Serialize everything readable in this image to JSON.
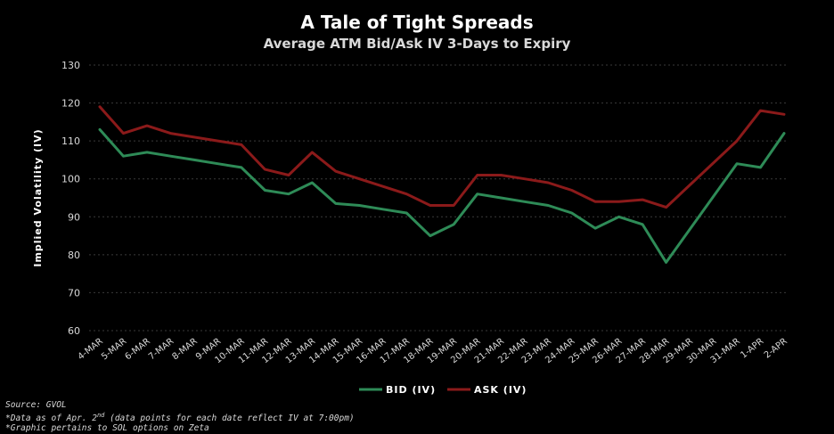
{
  "chart_data": {
    "type": "line",
    "title": "A Tale of Tight Spreads",
    "subtitle": "Average ATM Bid/Ask IV 3-Days to Expiry",
    "ylabel": "Implied Volatility (IV)",
    "xlabel": "",
    "ylim": [
      60,
      130
    ],
    "yticks": [
      60,
      70,
      80,
      90,
      100,
      110,
      120,
      130
    ],
    "grid": true,
    "legend_position": "bottom",
    "categories": [
      "4-Mar",
      "5-Mar",
      "6-Mar",
      "7-Mar",
      "8-Mar",
      "9-Mar",
      "10-Mar",
      "11-Mar",
      "12-Mar",
      "13-Mar",
      "14-Mar",
      "15-Mar",
      "16-Mar",
      "17-Mar",
      "18-Mar",
      "19-Mar",
      "20-Mar",
      "21-Mar",
      "22-Mar",
      "23-Mar",
      "24-Mar",
      "25-Mar",
      "26-Mar",
      "27-Mar",
      "28-Mar",
      "29-Mar",
      "30-Mar",
      "31-Mar",
      "1-Apr",
      "2-Apr"
    ],
    "series": [
      {
        "name": "Bid (IV)",
        "color": "#2e8b57",
        "values": [
          113,
          106,
          107,
          106,
          105,
          104,
          103,
          97,
          96,
          99,
          93.5,
          93,
          92,
          91,
          85,
          88,
          96,
          95,
          94,
          93,
          91,
          87,
          90,
          88,
          78,
          null,
          null,
          104,
          103,
          112
        ]
      },
      {
        "name": "Ask (IV)",
        "color": "#8b1a1a",
        "values": [
          119,
          112,
          114,
          112,
          111,
          110,
          109,
          102.5,
          101,
          107,
          102,
          100,
          98,
          96,
          93,
          93,
          101,
          101,
          100,
          99,
          97,
          94,
          94,
          94.5,
          92.5,
          null,
          null,
          110,
          118,
          117
        ]
      }
    ]
  },
  "footnotes": {
    "source": "Source: GVOL",
    "data_note_prefix": "*Data as of Apr. 2",
    "data_note_sup": "nd",
    "data_note_suffix": " (data points for each date reflect IV at 7:00pm)",
    "graphic_note": "*Graphic pertains to SOL options on Zeta"
  }
}
